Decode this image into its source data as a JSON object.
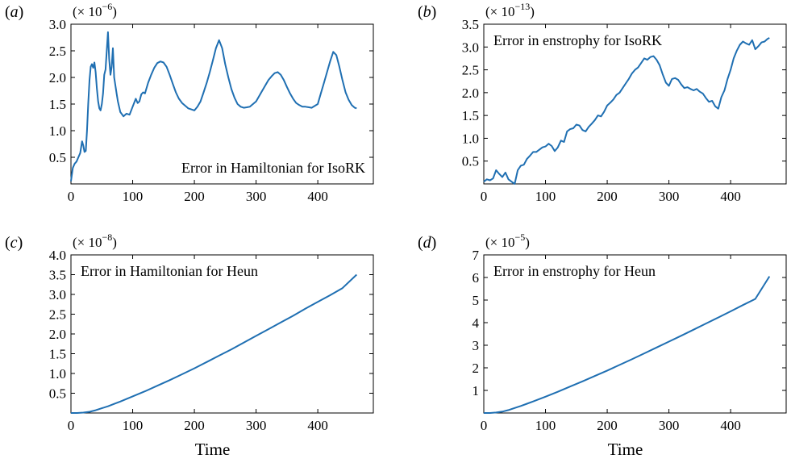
{
  "chart_data": [
    {
      "type": "line",
      "panel_label": "a",
      "scale_label": "(× 10",
      "scale_exponent": "−6",
      "annotation": "Error in Hamiltonian for IsoRK",
      "annotation_placement": "bottom-right",
      "xlabel": "",
      "xlim": [
        0,
        490
      ],
      "ylim": [
        0,
        3.0
      ],
      "xticks": [
        0,
        100,
        200,
        300,
        400
      ],
      "yticks": [
        0.5,
        1.0,
        1.5,
        2.0,
        2.5,
        3.0
      ],
      "ytick_labels": [
        "0.5",
        "1.0",
        "1.5",
        "2.0",
        "2.5",
        "3.0"
      ],
      "color": "#1f6fb2",
      "series": [
        {
          "x": [
            0,
            3,
            6,
            9,
            12,
            15,
            18,
            20,
            22,
            24,
            26,
            28,
            30,
            32,
            34,
            36,
            38,
            40,
            42,
            44,
            46,
            48,
            50,
            52,
            54,
            56,
            58,
            60,
            62,
            64,
            66,
            68,
            70,
            72,
            74,
            76,
            78,
            80,
            85,
            90,
            95,
            100,
            105,
            108,
            111,
            114,
            117,
            120,
            125,
            130,
            135,
            140,
            145,
            150,
            155,
            160,
            165,
            170,
            175,
            180,
            185,
            190,
            195,
            200,
            205,
            210,
            215,
            220,
            225,
            230,
            235,
            240,
            245,
            250,
            255,
            260,
            265,
            270,
            275,
            280,
            285,
            290,
            300,
            310,
            320,
            325,
            330,
            335,
            340,
            345,
            350,
            355,
            360,
            365,
            370,
            375,
            380,
            390,
            400,
            405,
            410,
            415,
            420,
            425,
            430,
            435,
            440,
            445,
            450,
            455,
            460,
            463
          ],
          "y": [
            0.05,
            0.3,
            0.38,
            0.42,
            0.5,
            0.58,
            0.8,
            0.72,
            0.6,
            0.62,
            1.0,
            1.5,
            1.95,
            2.2,
            2.25,
            2.18,
            2.28,
            2.1,
            1.8,
            1.55,
            1.42,
            1.38,
            1.5,
            1.7,
            2.05,
            2.15,
            2.5,
            2.85,
            2.35,
            2.05,
            2.2,
            2.55,
            2.0,
            1.85,
            1.7,
            1.55,
            1.45,
            1.35,
            1.27,
            1.32,
            1.3,
            1.45,
            1.6,
            1.52,
            1.55,
            1.68,
            1.72,
            1.7,
            1.9,
            2.05,
            2.18,
            2.27,
            2.3,
            2.28,
            2.2,
            2.05,
            1.88,
            1.72,
            1.6,
            1.52,
            1.47,
            1.42,
            1.4,
            1.38,
            1.45,
            1.55,
            1.72,
            1.9,
            2.1,
            2.32,
            2.55,
            2.7,
            2.55,
            2.25,
            2.0,
            1.78,
            1.62,
            1.5,
            1.45,
            1.43,
            1.44,
            1.45,
            1.55,
            1.75,
            1.95,
            2.02,
            2.08,
            2.1,
            2.05,
            1.95,
            1.82,
            1.7,
            1.6,
            1.52,
            1.48,
            1.45,
            1.45,
            1.43,
            1.5,
            1.7,
            1.9,
            2.1,
            2.3,
            2.48,
            2.42,
            2.2,
            1.95,
            1.72,
            1.58,
            1.48,
            1.43,
            1.42
          ]
        }
      ]
    },
    {
      "type": "line",
      "panel_label": "b",
      "scale_label": "(× 10",
      "scale_exponent": "−13",
      "annotation": "Error in enstrophy for IsoRK",
      "annotation_placement": "top-left",
      "xlabel": "",
      "xlim": [
        0,
        490
      ],
      "ylim": [
        0,
        3.5
      ],
      "xticks": [
        0,
        100,
        200,
        300,
        400
      ],
      "yticks": [
        0.5,
        1.0,
        1.5,
        2.0,
        2.5,
        3.0,
        3.5
      ],
      "ytick_labels": [
        "0.5",
        "1.0",
        "1.5",
        "2.0",
        "2.5",
        "3.0",
        "3.5"
      ],
      "color": "#1f6fb2",
      "series": [
        {
          "x": [
            0,
            5,
            10,
            15,
            20,
            25,
            30,
            35,
            40,
            45,
            50,
            55,
            60,
            65,
            70,
            75,
            80,
            85,
            90,
            95,
            100,
            105,
            110,
            115,
            120,
            125,
            130,
            135,
            140,
            145,
            150,
            155,
            160,
            165,
            170,
            175,
            180,
            185,
            190,
            195,
            200,
            205,
            210,
            215,
            220,
            225,
            230,
            235,
            240,
            245,
            250,
            255,
            260,
            265,
            270,
            275,
            280,
            285,
            290,
            295,
            300,
            305,
            310,
            315,
            320,
            325,
            330,
            335,
            340,
            345,
            350,
            355,
            360,
            365,
            370,
            375,
            380,
            385,
            390,
            395,
            400,
            405,
            410,
            415,
            420,
            425,
            430,
            435,
            440,
            445,
            450,
            455,
            460,
            463
          ],
          "y": [
            0.05,
            0.1,
            0.08,
            0.12,
            0.3,
            0.22,
            0.15,
            0.25,
            0.1,
            0.05,
            0.0,
            0.3,
            0.4,
            0.42,
            0.55,
            0.62,
            0.7,
            0.7,
            0.75,
            0.8,
            0.82,
            0.88,
            0.83,
            0.72,
            0.8,
            0.95,
            0.92,
            1.15,
            1.2,
            1.22,
            1.3,
            1.28,
            1.18,
            1.15,
            1.25,
            1.32,
            1.4,
            1.5,
            1.48,
            1.58,
            1.72,
            1.78,
            1.85,
            1.95,
            2.0,
            2.1,
            2.2,
            2.3,
            2.42,
            2.5,
            2.55,
            2.65,
            2.75,
            2.72,
            2.78,
            2.8,
            2.72,
            2.6,
            2.4,
            2.22,
            2.15,
            2.3,
            2.32,
            2.28,
            2.18,
            2.1,
            2.12,
            2.08,
            2.05,
            2.08,
            2.02,
            1.98,
            1.88,
            1.8,
            1.82,
            1.7,
            1.65,
            1.9,
            2.05,
            2.3,
            2.5,
            2.75,
            2.92,
            3.05,
            3.12,
            3.08,
            3.05,
            3.15,
            2.95,
            3.02,
            3.1,
            3.12,
            3.18,
            3.2
          ]
        }
      ]
    },
    {
      "type": "line",
      "panel_label": "c",
      "scale_label": "(× 10",
      "scale_exponent": "−8",
      "annotation": "Error in Hamiltonian for Heun",
      "annotation_placement": "top-left",
      "xlabel": "Time",
      "xlim": [
        0,
        490
      ],
      "ylim": [
        0,
        4.0
      ],
      "xticks": [
        0,
        100,
        200,
        300,
        400
      ],
      "yticks": [
        0.5,
        1.0,
        1.5,
        2.0,
        2.5,
        3.0,
        3.5,
        4.0
      ],
      "ytick_labels": [
        "0.5",
        "1.0",
        "1.5",
        "2.0",
        "2.5",
        "3.0",
        "3.5",
        "4.0"
      ],
      "color": "#1f6fb2",
      "series": [
        {
          "x": [
            0,
            10,
            20,
            30,
            40,
            50,
            60,
            70,
            80,
            100,
            120,
            140,
            160,
            180,
            200,
            220,
            240,
            260,
            280,
            300,
            320,
            340,
            360,
            380,
            400,
            420,
            440,
            463
          ],
          "y": [
            0.0,
            0.0,
            0.01,
            0.03,
            0.07,
            0.12,
            0.17,
            0.23,
            0.29,
            0.42,
            0.55,
            0.69,
            0.83,
            0.98,
            1.13,
            1.29,
            1.45,
            1.61,
            1.78,
            1.95,
            2.12,
            2.29,
            2.46,
            2.64,
            2.81,
            2.98,
            3.16,
            3.5
          ]
        }
      ]
    },
    {
      "type": "line",
      "panel_label": "d",
      "scale_label": "(× 10",
      "scale_exponent": "−5",
      "annotation": "Error in enstrophy for Heun",
      "annotation_placement": "top-left",
      "xlabel": "Time",
      "xlim": [
        0,
        490
      ],
      "ylim": [
        0,
        7
      ],
      "xticks": [
        0,
        100,
        200,
        300,
        400
      ],
      "yticks": [
        1,
        2,
        3,
        4,
        5,
        6,
        7
      ],
      "ytick_labels": [
        "1",
        "2",
        "3",
        "4",
        "5",
        "6",
        "7"
      ],
      "color": "#1f6fb2",
      "series": [
        {
          "x": [
            0,
            10,
            20,
            30,
            40,
            50,
            60,
            70,
            80,
            100,
            120,
            140,
            160,
            180,
            200,
            220,
            240,
            260,
            280,
            300,
            320,
            340,
            360,
            380,
            400,
            420,
            440,
            463
          ],
          "y": [
            0.0,
            0.0,
            0.02,
            0.06,
            0.13,
            0.22,
            0.31,
            0.41,
            0.51,
            0.72,
            0.94,
            1.17,
            1.4,
            1.64,
            1.88,
            2.13,
            2.38,
            2.64,
            2.9,
            3.16,
            3.42,
            3.69,
            3.96,
            4.23,
            4.5,
            4.78,
            5.05,
            6.05
          ]
        }
      ]
    }
  ]
}
